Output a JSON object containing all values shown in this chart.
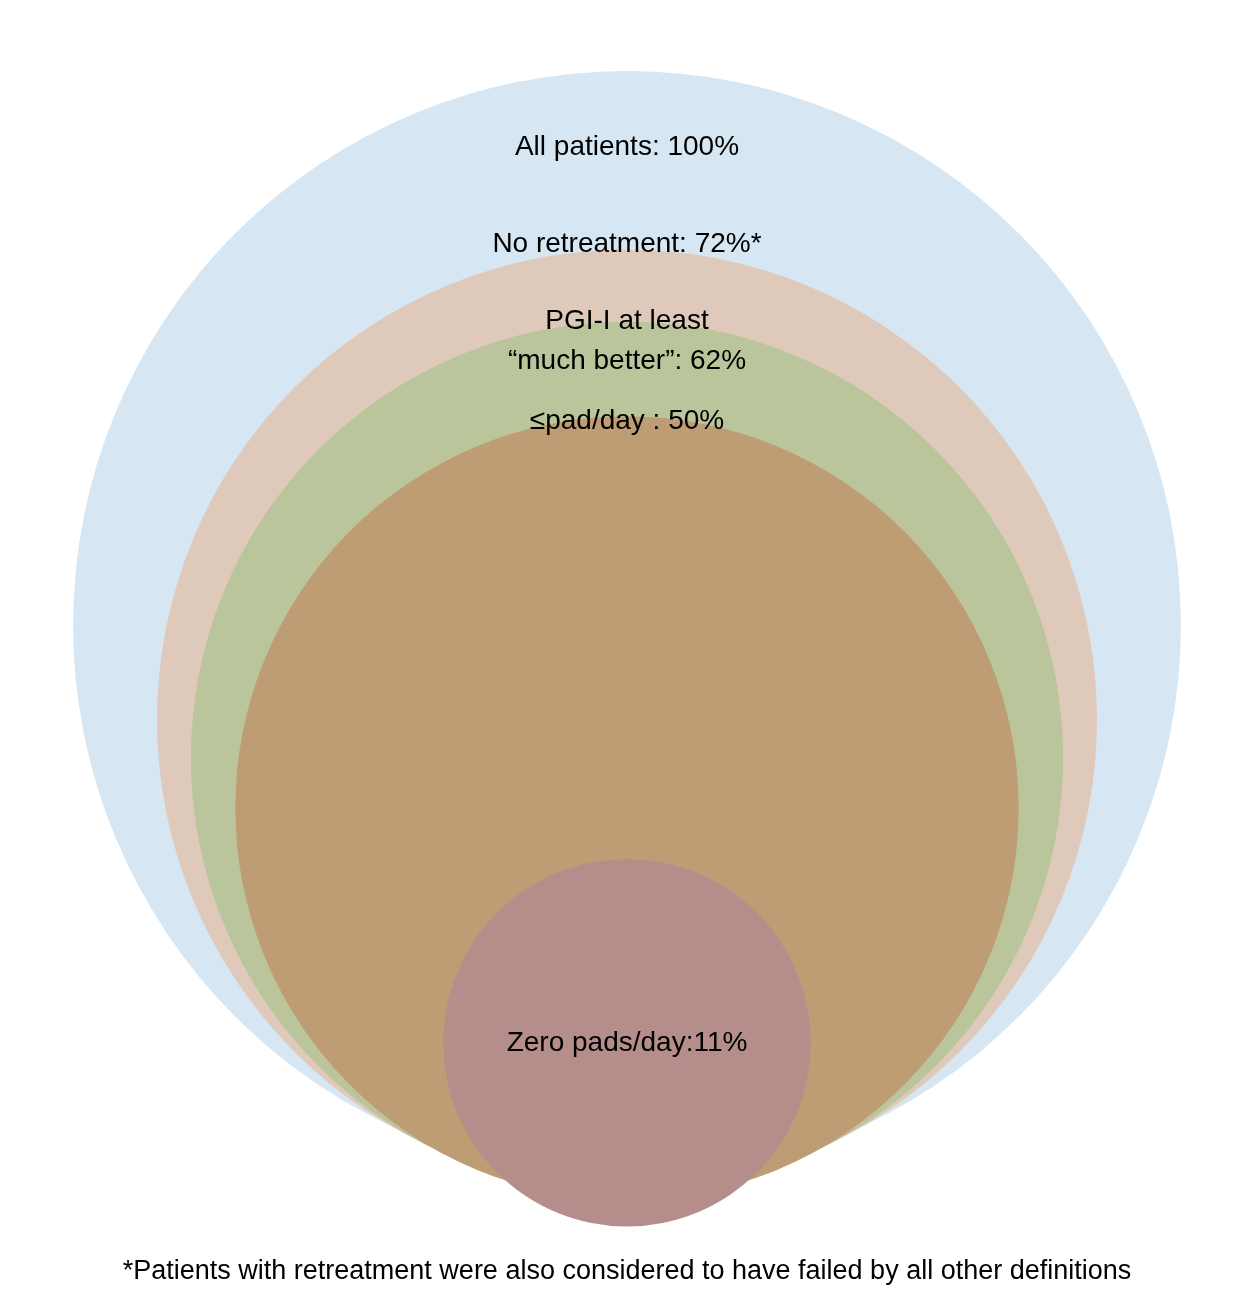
{
  "chart_data": {
    "type": "other",
    "values": [
      100,
      72,
      62,
      50,
      11
    ],
    "value_labels": [
      "All patients: 100%",
      "No retreatment: 72%*",
      "PGI-I at least\n“much better”: 62%",
      "≤pad/day : 50%",
      "Zero pads/day:11%"
    ],
    "colors": [
      "#d6e6f2",
      "#dfc9bb",
      "#bbc59b",
      "#be9c74",
      "#b58e8c"
    ],
    "annotations": [
      "*Patients with retreatment were also considered to have failed by all other definitions"
    ]
  }
}
